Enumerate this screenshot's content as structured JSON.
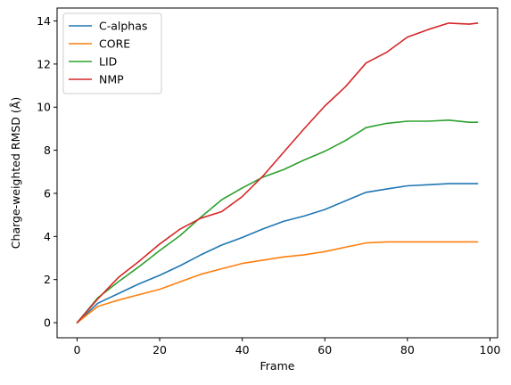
{
  "chart_data": {
    "type": "line",
    "title": "",
    "xlabel": "Frame",
    "ylabel": "Charge-weighted RMSD (Å)",
    "xlim": [
      -4.85,
      101.85
    ],
    "ylim": [
      -0.7,
      14.6
    ],
    "xticks": [
      0,
      20,
      40,
      60,
      80,
      100
    ],
    "yticks": [
      0,
      2,
      4,
      6,
      8,
      10,
      12,
      14
    ],
    "grid": false,
    "legend_position": "top-left",
    "x": [
      0,
      5,
      10,
      15,
      20,
      25,
      30,
      35,
      40,
      45,
      50,
      55,
      60,
      65,
      70,
      75,
      80,
      85,
      90,
      95,
      97
    ],
    "series": [
      {
        "name": "C-alphas",
        "color": "#1f77b4",
        "values": [
          0.0,
          0.9,
          1.35,
          1.8,
          2.2,
          2.65,
          3.15,
          3.6,
          3.95,
          4.35,
          4.7,
          4.95,
          5.25,
          5.65,
          6.05,
          6.2,
          6.35,
          6.4,
          6.45,
          6.45,
          6.45
        ]
      },
      {
        "name": "CORE",
        "color": "#ff7f0e",
        "values": [
          0.0,
          0.75,
          1.05,
          1.3,
          1.55,
          1.9,
          2.25,
          2.5,
          2.75,
          2.9,
          3.05,
          3.15,
          3.3,
          3.5,
          3.7,
          3.75,
          3.75,
          3.75,
          3.75,
          3.75,
          3.75
        ]
      },
      {
        "name": "LID",
        "color": "#2ca02c",
        "values": [
          0.0,
          1.15,
          1.9,
          2.6,
          3.35,
          4.05,
          4.9,
          5.7,
          6.25,
          6.75,
          7.1,
          7.55,
          7.95,
          8.45,
          9.05,
          9.25,
          9.35,
          9.35,
          9.4,
          9.3,
          9.3
        ]
      },
      {
        "name": "NMP",
        "color": "#d62728",
        "values": [
          0.0,
          1.1,
          2.1,
          2.85,
          3.65,
          4.35,
          4.85,
          5.15,
          5.85,
          6.8,
          7.9,
          9.0,
          10.05,
          10.95,
          12.05,
          12.55,
          13.25,
          13.6,
          13.9,
          13.85,
          13.9
        ]
      }
    ]
  }
}
